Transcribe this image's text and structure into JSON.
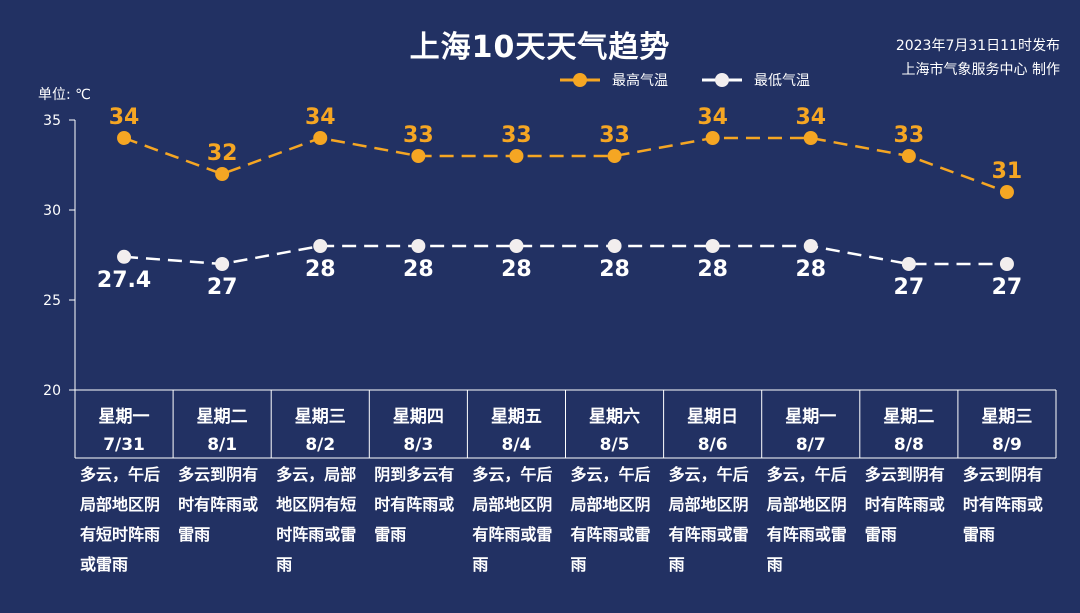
{
  "title": "上海10天天气趋势",
  "source": {
    "line1": "2023年7月31日11时发布",
    "line2": "上海市气象服务中心 制作"
  },
  "unit_label": "单位: ℃",
  "legend": {
    "high": "最高气温",
    "low": "最低气温"
  },
  "colors": {
    "background": "#223163",
    "high": "#f5a623",
    "low": "#ffffff",
    "axis": "#ffffff"
  },
  "chart_data": {
    "type": "line",
    "title": "上海10天天气趋势",
    "ylabel": "单位: ℃",
    "ylim": [
      20,
      35
    ],
    "yticks": [
      20,
      25,
      30,
      35
    ],
    "grid": false,
    "legend_position": "top-right",
    "categories": [
      {
        "weekday": "星期一",
        "date": "7/31"
      },
      {
        "weekday": "星期二",
        "date": "8/1"
      },
      {
        "weekday": "星期三",
        "date": "8/2"
      },
      {
        "weekday": "星期四",
        "date": "8/3"
      },
      {
        "weekday": "星期五",
        "date": "8/4"
      },
      {
        "weekday": "星期六",
        "date": "8/5"
      },
      {
        "weekday": "星期日",
        "date": "8/6"
      },
      {
        "weekday": "星期一",
        "date": "8/7"
      },
      {
        "weekday": "星期二",
        "date": "8/8"
      },
      {
        "weekday": "星期三",
        "date": "8/9"
      }
    ],
    "series": [
      {
        "name": "最高气温",
        "values": [
          34,
          32,
          34,
          33,
          33,
          33,
          34,
          34,
          33,
          31
        ],
        "labels": [
          "34",
          "32",
          "34",
          "33",
          "33",
          "33",
          "34",
          "34",
          "33",
          "31"
        ]
      },
      {
        "name": "最低气温",
        "values": [
          27.4,
          27,
          28,
          28,
          28,
          28,
          28,
          28,
          27,
          27
        ],
        "labels": [
          "27.4",
          "27",
          "28",
          "28",
          "28",
          "28",
          "28",
          "28",
          "27",
          "27"
        ]
      }
    ],
    "descriptions": [
      "多云，午后局部地区阴有短时阵雨或雷雨",
      "多云到阴有时有阵雨或雷雨",
      "多云，局部地区阴有短时阵雨或雷雨",
      "阴到多云有时有阵雨或雷雨",
      "多云，午后局部地区阴有阵雨或雷雨",
      "多云，午后局部地区阴有阵雨或雷雨",
      "多云，午后局部地区阴有阵雨或雷雨",
      "多云，午后局部地区阴有阵雨或雷雨",
      "多云到阴有时有阵雨或雷雨",
      "多云到阴有时有阵雨或雷雨"
    ]
  }
}
